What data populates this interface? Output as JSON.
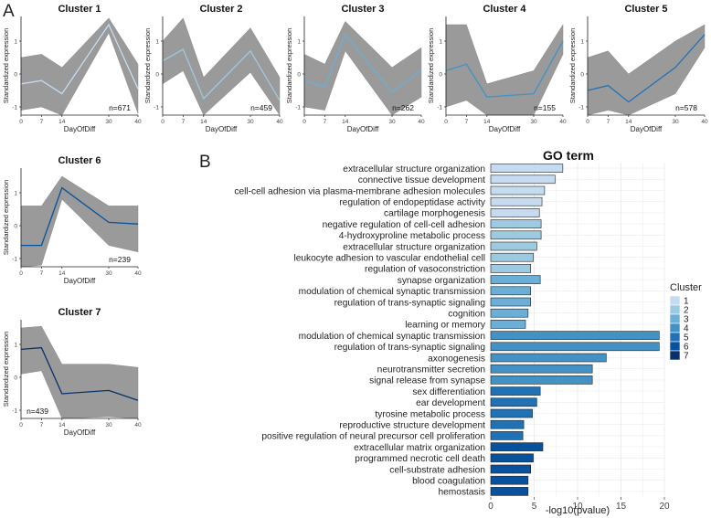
{
  "panel_labels": {
    "a": "A",
    "b": "B"
  },
  "colors": {
    "band": "#9a9a9a",
    "c1": "#c6dbef",
    "c2": "#9ecae1",
    "c3": "#6baed6",
    "c4": "#4292c6",
    "c5": "#2171b5",
    "c6": "#08519c",
    "c7": "#08306b"
  },
  "chart_data": [
    {
      "type": "line",
      "title": "Cluster 1",
      "n_label": "n=671",
      "x": [
        0,
        7,
        14,
        30,
        40
      ],
      "x_ticks": [
        "0",
        "7",
        "14",
        "30",
        "40"
      ],
      "y_ticks": [
        -1,
        0,
        1
      ],
      "ylim": [
        -1.25,
        1.75
      ],
      "mean": [
        -0.3,
        -0.2,
        -0.6,
        1.5,
        -0.45
      ],
      "band_upper": [
        0.5,
        0.6,
        0.2,
        1.7,
        0.3
      ],
      "band_lower": [
        -1.1,
        -1.0,
        -1.25,
        1.25,
        -1.2
      ],
      "xlabel": "DayOfDiff",
      "ylabel": "Standardized expression",
      "color": "#c6dbef"
    },
    {
      "type": "line",
      "title": "Cluster 2",
      "n_label": "n=459",
      "x": [
        0,
        7,
        14,
        30,
        40
      ],
      "x_ticks": [
        "0",
        "7",
        "14",
        "30",
        "40"
      ],
      "y_ticks": [
        -1,
        0,
        1
      ],
      "ylim": [
        -1.25,
        1.75
      ],
      "mean": [
        0.4,
        0.75,
        -0.75,
        0.7,
        -0.8
      ],
      "band_upper": [
        1.0,
        1.7,
        -0.1,
        1.4,
        -0.1
      ],
      "band_lower": [
        -0.3,
        0.1,
        -1.25,
        0.05,
        -1.25
      ],
      "xlabel": "DayOfDiff",
      "ylabel": "Standardized expression",
      "color": "#9ecae1"
    },
    {
      "type": "line",
      "title": "Cluster 3",
      "n_label": "n=262",
      "x": [
        0,
        7,
        14,
        30,
        40
      ],
      "x_ticks": [
        "0",
        "7",
        "14",
        "30",
        "40"
      ],
      "y_ticks": [
        -1,
        0,
        1
      ],
      "ylim": [
        -1.25,
        1.75
      ],
      "mean": [
        -0.2,
        -0.4,
        1.2,
        -0.55,
        0.1
      ],
      "band_upper": [
        0.6,
        0.3,
        1.6,
        0.2,
        0.8
      ],
      "band_lower": [
        -1.0,
        -1.1,
        0.7,
        -1.25,
        -0.7
      ],
      "xlabel": "DayOfDiff",
      "ylabel": "Standardized expression",
      "color": "#6baed6"
    },
    {
      "type": "line",
      "title": "Cluster 4",
      "n_label": "n=155",
      "x": [
        0,
        7,
        14,
        30,
        40
      ],
      "x_ticks": [
        "0",
        "7",
        "14",
        "30",
        "40"
      ],
      "y_ticks": [
        -1,
        0,
        1
      ],
      "ylim": [
        -1.25,
        1.75
      ],
      "mean": [
        0.1,
        0.3,
        -0.7,
        -0.6,
        1.0
      ],
      "band_upper": [
        1.5,
        1.5,
        -0.3,
        0.1,
        1.5
      ],
      "band_lower": [
        -1.0,
        -0.8,
        -1.25,
        -1.25,
        0.6
      ],
      "xlabel": "DayOfDiff",
      "ylabel": "Standardized expression",
      "color": "#4292c6"
    },
    {
      "type": "line",
      "title": "Cluster 5",
      "n_label": "n=578",
      "x": [
        0,
        7,
        14,
        30,
        40
      ],
      "x_ticks": [
        "0",
        "7",
        "14",
        "30",
        "40"
      ],
      "y_ticks": [
        -1,
        0,
        1
      ],
      "ylim": [
        -1.25,
        1.75
      ],
      "mean": [
        -0.5,
        -0.35,
        -0.85,
        0.2,
        1.2
      ],
      "band_upper": [
        0.5,
        0.7,
        0.0,
        1.0,
        1.5
      ],
      "band_lower": [
        -1.25,
        -1.1,
        -1.25,
        -0.6,
        0.8
      ],
      "xlabel": "DayOfDiff",
      "ylabel": "Standardized expression",
      "color": "#2171b5"
    },
    {
      "type": "line",
      "title": "Cluster 6",
      "n_label": "n=239",
      "x": [
        0,
        7,
        14,
        30,
        40
      ],
      "x_ticks": [
        "0",
        "7",
        "14",
        "30",
        "40"
      ],
      "y_ticks": [
        -1,
        0,
        1
      ],
      "ylim": [
        -1.25,
        1.75
      ],
      "mean": [
        -0.6,
        -0.6,
        1.15,
        0.1,
        0.05
      ],
      "band_upper": [
        0.6,
        0.6,
        1.5,
        0.6,
        0.6
      ],
      "band_lower": [
        -1.25,
        -1.2,
        0.8,
        -0.6,
        -0.8
      ],
      "xlabel": "DayOfDiff",
      "ylabel": "Standardized expression",
      "color": "#08519c"
    },
    {
      "type": "line",
      "title": "Cluster 7",
      "n_label": "n=439",
      "x": [
        0,
        7,
        14,
        30,
        40
      ],
      "x_ticks": [
        "0",
        "7",
        "14",
        "30",
        "40"
      ],
      "y_ticks": [
        -1,
        0,
        1
      ],
      "ylim": [
        -1.25,
        1.75
      ],
      "mean": [
        0.85,
        0.9,
        -0.5,
        -0.4,
        -0.7
      ],
      "band_upper": [
        1.5,
        1.55,
        0.4,
        0.4,
        0.3
      ],
      "band_lower": [
        0.1,
        0.2,
        -1.25,
        -1.2,
        -1.25
      ],
      "xlabel": "DayOfDiff",
      "ylabel": "Standardized expression",
      "color": "#08306b"
    },
    {
      "type": "bar",
      "orientation": "horizontal",
      "title": "GO term",
      "xlabel": "-log10(pvalue)",
      "xlim": [
        0,
        20
      ],
      "x_ticks": [
        0,
        5,
        10,
        15,
        20
      ],
      "legend_title": "Cluster",
      "legend_position": "right",
      "legend_entries": [
        "1",
        "2",
        "3",
        "4",
        "5",
        "6",
        "7"
      ],
      "bars": [
        {
          "label": "extracellular structure organization",
          "value": 8.3,
          "cluster": "1"
        },
        {
          "label": "connective tissue development",
          "value": 7.4,
          "cluster": "1"
        },
        {
          "label": "cell-cell adhesion via plasma-membrane adhesion molecules",
          "value": 6.2,
          "cluster": "1"
        },
        {
          "label": "regulation of endopeptidase activity",
          "value": 5.9,
          "cluster": "1"
        },
        {
          "label": "cartilage morphogenesis",
          "value": 5.6,
          "cluster": "1"
        },
        {
          "label": "negative regulation of cell-cell adhesion",
          "value": 5.8,
          "cluster": "2"
        },
        {
          "label": "4-hydroxyproline metabolic process",
          "value": 5.8,
          "cluster": "2"
        },
        {
          "label": "extracellular structure organization",
          "value": 5.3,
          "cluster": "2"
        },
        {
          "label": "leukocyte adhesion to vascular endothelial cell",
          "value": 4.9,
          "cluster": "2"
        },
        {
          "label": "regulation of vasoconstriction",
          "value": 4.6,
          "cluster": "2"
        },
        {
          "label": "synapse organization",
          "value": 5.7,
          "cluster": "3"
        },
        {
          "label": "modulation of chemical synaptic transmission",
          "value": 4.6,
          "cluster": "3"
        },
        {
          "label": "regulation of trans-synaptic signaling",
          "value": 4.6,
          "cluster": "3"
        },
        {
          "label": "cognition",
          "value": 4.3,
          "cluster": "3"
        },
        {
          "label": "learning or memory",
          "value": 4.0,
          "cluster": "3"
        },
        {
          "label": "modulation of chemical synaptic transmission",
          "value": 19.4,
          "cluster": "4"
        },
        {
          "label": "regulation of trans-synaptic signaling",
          "value": 19.4,
          "cluster": "4"
        },
        {
          "label": "axonogenesis",
          "value": 13.3,
          "cluster": "4"
        },
        {
          "label": "neurotransmitter secretion",
          "value": 11.7,
          "cluster": "4"
        },
        {
          "label": "signal release from synapse",
          "value": 11.7,
          "cluster": "4"
        },
        {
          "label": "sex differentiation",
          "value": 5.7,
          "cluster": "5"
        },
        {
          "label": "ear development",
          "value": 5.3,
          "cluster": "5"
        },
        {
          "label": "tyrosine metabolic process",
          "value": 4.8,
          "cluster": "5"
        },
        {
          "label": "reproductive structure development",
          "value": 3.8,
          "cluster": "5"
        },
        {
          "label": "positive regulation of neural precursor cell proliferation",
          "value": 3.7,
          "cluster": "5"
        },
        {
          "label": "extracellular matrix organization",
          "value": 6.0,
          "cluster": "6"
        },
        {
          "label": "programmed necrotic cell death",
          "value": 4.9,
          "cluster": "6"
        },
        {
          "label": "cell-substrate adhesion",
          "value": 4.6,
          "cluster": "6"
        },
        {
          "label": "blood coagulation",
          "value": 4.3,
          "cluster": "6"
        },
        {
          "label": "hemostasis",
          "value": 4.3,
          "cluster": "6"
        }
      ]
    }
  ]
}
